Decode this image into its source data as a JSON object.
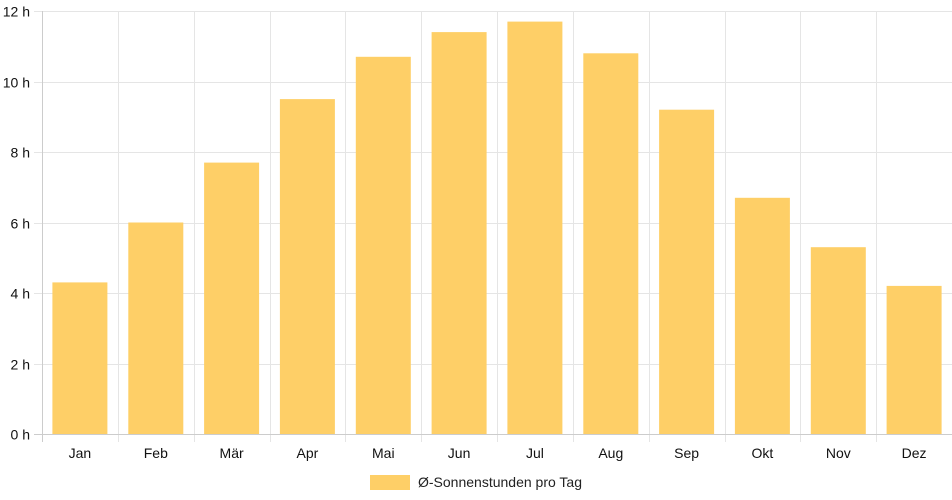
{
  "chart_data": {
    "type": "bar",
    "categories": [
      "Jan",
      "Feb",
      "Mär",
      "Apr",
      "Mai",
      "Jun",
      "Jul",
      "Aug",
      "Sep",
      "Okt",
      "Nov",
      "Dez"
    ],
    "series": [
      {
        "name": "Ø-Sonnenstunden pro Tag",
        "values": [
          4.3,
          6.0,
          7.7,
          9.5,
          10.7,
          11.4,
          11.7,
          10.8,
          9.2,
          6.7,
          5.3,
          4.2
        ]
      }
    ],
    "y_ticks": [
      "0 h",
      "2 h",
      "4 h",
      "6 h",
      "8 h",
      "10 h",
      "12 h"
    ],
    "ylim": [
      0,
      12
    ],
    "grid": true,
    "legend_position": "bottom",
    "colors": {
      "bar": "#fecf67",
      "grid": "#e5e5e5",
      "axis": "#cccccc"
    }
  }
}
